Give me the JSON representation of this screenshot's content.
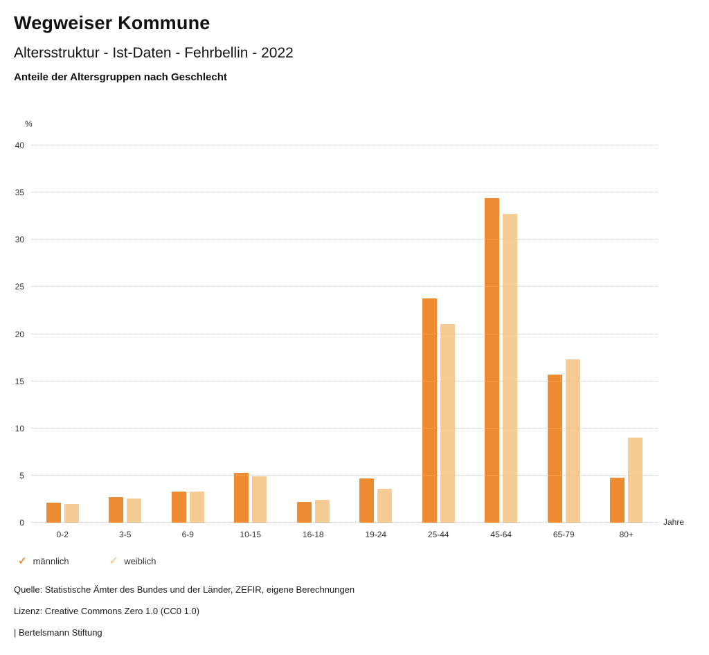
{
  "header": {
    "title": "Wegweiser Kommune",
    "subtitle": "Altersstruktur - Ist-Daten - Fehrbellin - 2022",
    "chart_heading": "Anteile der Altersgruppen nach Geschlecht"
  },
  "chart_data": {
    "type": "bar",
    "title": "Anteile der Altersgruppen nach Geschlecht",
    "unit_label": "%",
    "x_axis_label": "Jahre",
    "categories": [
      "0-2",
      "3-5",
      "6-9",
      "10-15",
      "16-18",
      "19-24",
      "25-44",
      "45-64",
      "65-79",
      "80+"
    ],
    "series": [
      {
        "name": "männlich",
        "color": "#ED8B33",
        "values": [
          2.1,
          2.7,
          3.3,
          5.3,
          2.2,
          4.7,
          23.8,
          34.4,
          15.7,
          4.8
        ]
      },
      {
        "name": "weiblich",
        "color": "#F6CB94",
        "values": [
          2.0,
          2.6,
          3.3,
          4.9,
          2.4,
          3.6,
          21.1,
          32.7,
          17.3,
          9.0
        ]
      }
    ],
    "ylim": [
      0,
      40
    ],
    "ytick_step": 5,
    "grid": true,
    "gridline_color": "#c4c4c4",
    "legend_position": "bottom",
    "legend_check_icon": "✓"
  },
  "footer": {
    "source": "Quelle: Statistische Ämter des Bundes und der Länder, ZEFIR, eigene Berechnungen",
    "license": "Lizenz: Creative Commons Zero 1.0 (CC0 1.0)",
    "attribution": "| Bertelsmann Stiftung"
  }
}
